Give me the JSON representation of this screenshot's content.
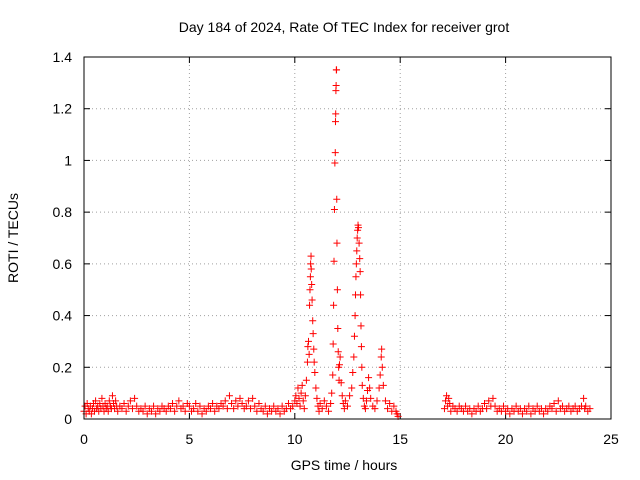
{
  "chart_data": {
    "type": "scatter",
    "title": "Day 184 of 2024, Rate Of TEC Index for receiver grot",
    "xlabel": "GPS time / hours",
    "ylabel": "ROTI / TECUs",
    "xlim": [
      0,
      25
    ],
    "ylim": [
      0,
      1.4
    ],
    "x_ticks": [
      0,
      5,
      10,
      15,
      20,
      25
    ],
    "x_tick_labels": [
      "0",
      "5",
      "10",
      "15",
      "20",
      "25"
    ],
    "y_ticks": [
      0,
      0.2,
      0.4,
      0.6,
      0.8,
      1.0,
      1.2,
      1.4
    ],
    "y_tick_labels": [
      "0",
      "0.2",
      "0.4",
      "0.6",
      "0.8",
      "1",
      "1.2",
      "1.4"
    ],
    "grid": true,
    "marker": "+",
    "series": [
      {
        "name": "ROTI",
        "color": "#ff0000",
        "points": [
          [
            0.0,
            0.03
          ],
          [
            0.05,
            0.05
          ],
          [
            0.1,
            0.02
          ],
          [
            0.15,
            0.06
          ],
          [
            0.2,
            0.04
          ],
          [
            0.25,
            0.03
          ],
          [
            0.3,
            0.05
          ],
          [
            0.35,
            0.02
          ],
          [
            0.4,
            0.04
          ],
          [
            0.45,
            0.06
          ],
          [
            0.5,
            0.03
          ],
          [
            0.55,
            0.07
          ],
          [
            0.6,
            0.04
          ],
          [
            0.65,
            0.05
          ],
          [
            0.7,
            0.03
          ],
          [
            0.75,
            0.06
          ],
          [
            0.8,
            0.04
          ],
          [
            0.85,
            0.08
          ],
          [
            0.9,
            0.05
          ],
          [
            0.95,
            0.03
          ],
          [
            1.0,
            0.06
          ],
          [
            1.05,
            0.04
          ],
          [
            1.1,
            0.05
          ],
          [
            1.15,
            0.03
          ],
          [
            1.2,
            0.07
          ],
          [
            1.25,
            0.05
          ],
          [
            1.3,
            0.04
          ],
          [
            1.35,
            0.09
          ],
          [
            1.4,
            0.06
          ],
          [
            1.45,
            0.04
          ],
          [
            1.5,
            0.07
          ],
          [
            1.55,
            0.05
          ],
          [
            1.6,
            0.03
          ],
          [
            1.7,
            0.05
          ],
          [
            1.8,
            0.04
          ],
          [
            1.9,
            0.06
          ],
          [
            2.0,
            0.03
          ],
          [
            2.1,
            0.05
          ],
          [
            2.2,
            0.07
          ],
          [
            2.3,
            0.04
          ],
          [
            2.4,
            0.08
          ],
          [
            2.5,
            0.05
          ],
          [
            2.6,
            0.03
          ],
          [
            2.7,
            0.04
          ],
          [
            2.8,
            0.03
          ],
          [
            2.9,
            0.05
          ],
          [
            3.0,
            0.02
          ],
          [
            3.1,
            0.04
          ],
          [
            3.2,
            0.03
          ],
          [
            3.3,
            0.05
          ],
          [
            3.4,
            0.02
          ],
          [
            3.5,
            0.04
          ],
          [
            3.6,
            0.03
          ],
          [
            3.7,
            0.05
          ],
          [
            3.8,
            0.04
          ],
          [
            3.9,
            0.03
          ],
          [
            4.0,
            0.05
          ],
          [
            4.1,
            0.04
          ],
          [
            4.2,
            0.06
          ],
          [
            4.3,
            0.03
          ],
          [
            4.4,
            0.05
          ],
          [
            4.5,
            0.07
          ],
          [
            4.6,
            0.04
          ],
          [
            4.7,
            0.05
          ],
          [
            4.8,
            0.03
          ],
          [
            4.9,
            0.06
          ],
          [
            5.0,
            0.05
          ],
          [
            5.1,
            0.03
          ],
          [
            5.2,
            0.04
          ],
          [
            5.3,
            0.06
          ],
          [
            5.4,
            0.03
          ],
          [
            5.5,
            0.05
          ],
          [
            5.6,
            0.02
          ],
          [
            5.7,
            0.04
          ],
          [
            5.8,
            0.03
          ],
          [
            5.9,
            0.05
          ],
          [
            6.0,
            0.04
          ],
          [
            6.1,
            0.06
          ],
          [
            6.2,
            0.03
          ],
          [
            6.3,
            0.05
          ],
          [
            6.4,
            0.04
          ],
          [
            6.5,
            0.06
          ],
          [
            6.6,
            0.05
          ],
          [
            6.7,
            0.07
          ],
          [
            6.8,
            0.04
          ],
          [
            6.9,
            0.09
          ],
          [
            7.0,
            0.06
          ],
          [
            7.1,
            0.04
          ],
          [
            7.2,
            0.07
          ],
          [
            7.3,
            0.05
          ],
          [
            7.4,
            0.08
          ],
          [
            7.5,
            0.06
          ],
          [
            7.6,
            0.04
          ],
          [
            7.7,
            0.05
          ],
          [
            7.8,
            0.07
          ],
          [
            7.9,
            0.04
          ],
          [
            8.0,
            0.08
          ],
          [
            8.1,
            0.05
          ],
          [
            8.2,
            0.03
          ],
          [
            8.3,
            0.06
          ],
          [
            8.4,
            0.04
          ],
          [
            8.5,
            0.03
          ],
          [
            8.6,
            0.05
          ],
          [
            8.7,
            0.02
          ],
          [
            8.8,
            0.04
          ],
          [
            8.9,
            0.03
          ],
          [
            9.0,
            0.05
          ],
          [
            9.1,
            0.03
          ],
          [
            9.2,
            0.04
          ],
          [
            9.3,
            0.02
          ],
          [
            9.4,
            0.05
          ],
          [
            9.5,
            0.03
          ],
          [
            9.6,
            0.04
          ],
          [
            9.7,
            0.06
          ],
          [
            9.8,
            0.04
          ],
          [
            9.9,
            0.05
          ],
          [
            10.0,
            0.07
          ],
          [
            10.05,
            0.09
          ],
          [
            10.1,
            0.06
          ],
          [
            10.15,
            0.12
          ],
          [
            10.2,
            0.08
          ],
          [
            10.25,
            0.05
          ],
          [
            10.3,
            0.1
          ],
          [
            10.35,
            0.13
          ],
          [
            10.4,
            0.07
          ],
          [
            10.45,
            0.04
          ],
          [
            10.5,
            0.09
          ],
          [
            10.55,
            0.15
          ],
          [
            10.6,
            0.22
          ],
          [
            10.62,
            0.28
          ],
          [
            10.65,
            0.3
          ],
          [
            10.68,
            0.25
          ],
          [
            10.7,
            0.44
          ],
          [
            10.72,
            0.5
          ],
          [
            10.74,
            0.55
          ],
          [
            10.75,
            0.6
          ],
          [
            10.77,
            0.63
          ],
          [
            10.78,
            0.58
          ],
          [
            10.8,
            0.52
          ],
          [
            10.82,
            0.46
          ],
          [
            10.85,
            0.38
          ],
          [
            10.87,
            0.33
          ],
          [
            10.9,
            0.27
          ],
          [
            10.92,
            0.22
          ],
          [
            10.95,
            0.18
          ],
          [
            11.0,
            0.12
          ],
          [
            11.05,
            0.08
          ],
          [
            11.1,
            0.05
          ],
          [
            11.15,
            0.03
          ],
          [
            11.2,
            0.06
          ],
          [
            11.3,
            0.04
          ],
          [
            11.4,
            0.07
          ],
          [
            11.5,
            0.05
          ],
          [
            11.6,
            0.03
          ],
          [
            11.7,
            0.06
          ],
          [
            11.75,
            0.1
          ],
          [
            11.8,
            0.17
          ],
          [
            11.82,
            0.29
          ],
          [
            11.84,
            0.44
          ],
          [
            11.86,
            0.61
          ],
          [
            11.88,
            0.81
          ],
          [
            11.9,
            0.99
          ],
          [
            11.92,
            1.03
          ],
          [
            11.93,
            1.15
          ],
          [
            11.94,
            1.18
          ],
          [
            11.95,
            1.27
          ],
          [
            11.96,
            1.29
          ],
          [
            11.97,
            1.35
          ],
          [
            11.98,
            1.35
          ],
          [
            11.99,
            0.85
          ],
          [
            12.0,
            0.68
          ],
          [
            12.02,
            0.5
          ],
          [
            12.04,
            0.35
          ],
          [
            12.06,
            0.26
          ],
          [
            12.08,
            0.2
          ],
          [
            12.1,
            0.15
          ],
          [
            12.12,
            0.21
          ],
          [
            12.15,
            0.24
          ],
          [
            12.2,
            0.14
          ],
          [
            12.25,
            0.09
          ],
          [
            12.3,
            0.06
          ],
          [
            12.35,
            0.04
          ],
          [
            12.4,
            0.07
          ],
          [
            12.5,
            0.05
          ],
          [
            12.6,
            0.09
          ],
          [
            12.7,
            0.12
          ],
          [
            12.75,
            0.18
          ],
          [
            12.8,
            0.24
          ],
          [
            12.83,
            0.32
          ],
          [
            12.86,
            0.4
          ],
          [
            12.88,
            0.48
          ],
          [
            12.9,
            0.55
          ],
          [
            12.92,
            0.6
          ],
          [
            12.94,
            0.65
          ],
          [
            12.96,
            0.7
          ],
          [
            12.98,
            0.73
          ],
          [
            13.0,
            0.75
          ],
          [
            13.02,
            0.74
          ],
          [
            13.05,
            0.68
          ],
          [
            13.08,
            0.62
          ],
          [
            13.1,
            0.57
          ],
          [
            13.12,
            0.48
          ],
          [
            13.14,
            0.36
          ],
          [
            13.16,
            0.28
          ],
          [
            13.18,
            0.2
          ],
          [
            13.2,
            0.13
          ],
          [
            13.25,
            0.08
          ],
          [
            13.3,
            0.05
          ],
          [
            13.35,
            0.04
          ],
          [
            13.4,
            0.07
          ],
          [
            13.45,
            0.11
          ],
          [
            13.5,
            0.16
          ],
          [
            13.55,
            0.12
          ],
          [
            13.6,
            0.08
          ],
          [
            13.7,
            0.05
          ],
          [
            13.8,
            0.04
          ],
          [
            13.9,
            0.07
          ],
          [
            14.0,
            0.12
          ],
          [
            14.05,
            0.17
          ],
          [
            14.1,
            0.24
          ],
          [
            14.12,
            0.27
          ],
          [
            14.15,
            0.2
          ],
          [
            14.2,
            0.13
          ],
          [
            14.3,
            0.07
          ],
          [
            14.4,
            0.04
          ],
          [
            14.5,
            0.06
          ],
          [
            14.6,
            0.03
          ],
          [
            14.7,
            0.05
          ],
          [
            14.8,
            0.03
          ],
          [
            14.85,
            0.02
          ],
          [
            14.9,
            0.01
          ],
          [
            17.1,
            0.04
          ],
          [
            17.15,
            0.07
          ],
          [
            17.2,
            0.09
          ],
          [
            17.25,
            0.05
          ],
          [
            17.3,
            0.08
          ],
          [
            17.35,
            0.06
          ],
          [
            17.4,
            0.03
          ],
          [
            17.5,
            0.05
          ],
          [
            17.6,
            0.04
          ],
          [
            17.7,
            0.03
          ],
          [
            17.8,
            0.05
          ],
          [
            17.9,
            0.04
          ],
          [
            18.0,
            0.03
          ],
          [
            18.1,
            0.05
          ],
          [
            18.2,
            0.03
          ],
          [
            18.3,
            0.04
          ],
          [
            18.4,
            0.02
          ],
          [
            18.5,
            0.04
          ],
          [
            18.6,
            0.03
          ],
          [
            18.7,
            0.05
          ],
          [
            18.8,
            0.03
          ],
          [
            18.9,
            0.04
          ],
          [
            19.0,
            0.06
          ],
          [
            19.1,
            0.04
          ],
          [
            19.2,
            0.07
          ],
          [
            19.3,
            0.05
          ],
          [
            19.4,
            0.08
          ],
          [
            19.5,
            0.05
          ],
          [
            19.6,
            0.03
          ],
          [
            19.7,
            0.04
          ],
          [
            19.8,
            0.03
          ],
          [
            19.9,
            0.05
          ],
          [
            20.0,
            0.03
          ],
          [
            20.1,
            0.04
          ],
          [
            20.2,
            0.02
          ],
          [
            20.3,
            0.04
          ],
          [
            20.4,
            0.03
          ],
          [
            20.5,
            0.05
          ],
          [
            20.6,
            0.03
          ],
          [
            20.7,
            0.04
          ],
          [
            20.8,
            0.02
          ],
          [
            20.9,
            0.04
          ],
          [
            21.0,
            0.03
          ],
          [
            21.1,
            0.05
          ],
          [
            21.2,
            0.02
          ],
          [
            21.3,
            0.04
          ],
          [
            21.4,
            0.03
          ],
          [
            21.5,
            0.05
          ],
          [
            21.6,
            0.03
          ],
          [
            21.7,
            0.04
          ],
          [
            21.8,
            0.02
          ],
          [
            21.9,
            0.04
          ],
          [
            22.0,
            0.03
          ],
          [
            22.1,
            0.05
          ],
          [
            22.2,
            0.04
          ],
          [
            22.3,
            0.06
          ],
          [
            22.4,
            0.03
          ],
          [
            22.5,
            0.07
          ],
          [
            22.6,
            0.04
          ],
          [
            22.7,
            0.05
          ],
          [
            22.8,
            0.03
          ],
          [
            22.9,
            0.04
          ],
          [
            23.0,
            0.05
          ],
          [
            23.1,
            0.03
          ],
          [
            23.2,
            0.04
          ],
          [
            23.3,
            0.05
          ],
          [
            23.4,
            0.03
          ],
          [
            23.5,
            0.04
          ],
          [
            23.6,
            0.05
          ],
          [
            23.7,
            0.08
          ],
          [
            23.75,
            0.04
          ],
          [
            23.8,
            0.05
          ],
          [
            23.9,
            0.03
          ],
          [
            24.0,
            0.04
          ]
        ]
      }
    ]
  }
}
